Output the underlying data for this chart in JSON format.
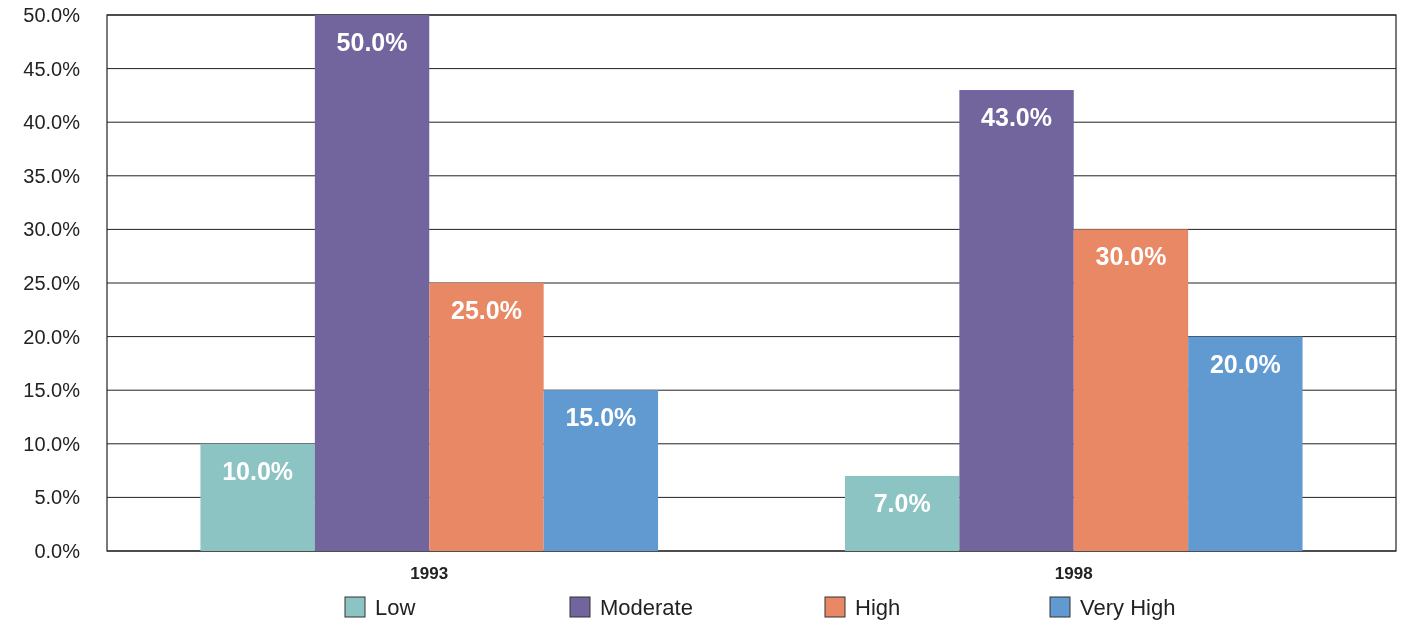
{
  "chart_data": {
    "type": "bar",
    "categories": [
      "1993",
      "1998"
    ],
    "series": [
      {
        "name": "Low",
        "color": "#8cc3c3",
        "values": [
          10,
          7
        ]
      },
      {
        "name": "Moderate",
        "color": "#72659e",
        "values": [
          50,
          43
        ]
      },
      {
        "name": "High",
        "color": "#e88865",
        "values": [
          25,
          30
        ]
      },
      {
        "name": "Very High",
        "color": "#619ad1",
        "values": [
          15,
          20
        ]
      }
    ],
    "ylim": [
      0,
      50
    ],
    "yticks": [
      {
        "value": 0,
        "label": "0.0%"
      },
      {
        "value": 5,
        "label": "5.0%"
      },
      {
        "value": 10,
        "label": "10.0%"
      },
      {
        "value": 15,
        "label": "15.0%"
      },
      {
        "value": 20,
        "label": "20.0%"
      },
      {
        "value": 25,
        "label": "25.0%"
      },
      {
        "value": 30,
        "label": "30.0%"
      },
      {
        "value": 35,
        "label": "35.0%"
      },
      {
        "value": 40,
        "label": "40.0%"
      },
      {
        "value": 45,
        "label": "45.0%"
      },
      {
        "value": 50,
        "label": "50.0%"
      }
    ],
    "value_labels": [
      [
        "10.0%",
        "7.0%"
      ],
      [
        "50.0%",
        "43.0%"
      ],
      [
        "25.0%",
        "30.0%"
      ],
      [
        "15.0%",
        "20.0%"
      ]
    ],
    "grid": "y",
    "legend": "bottom"
  }
}
